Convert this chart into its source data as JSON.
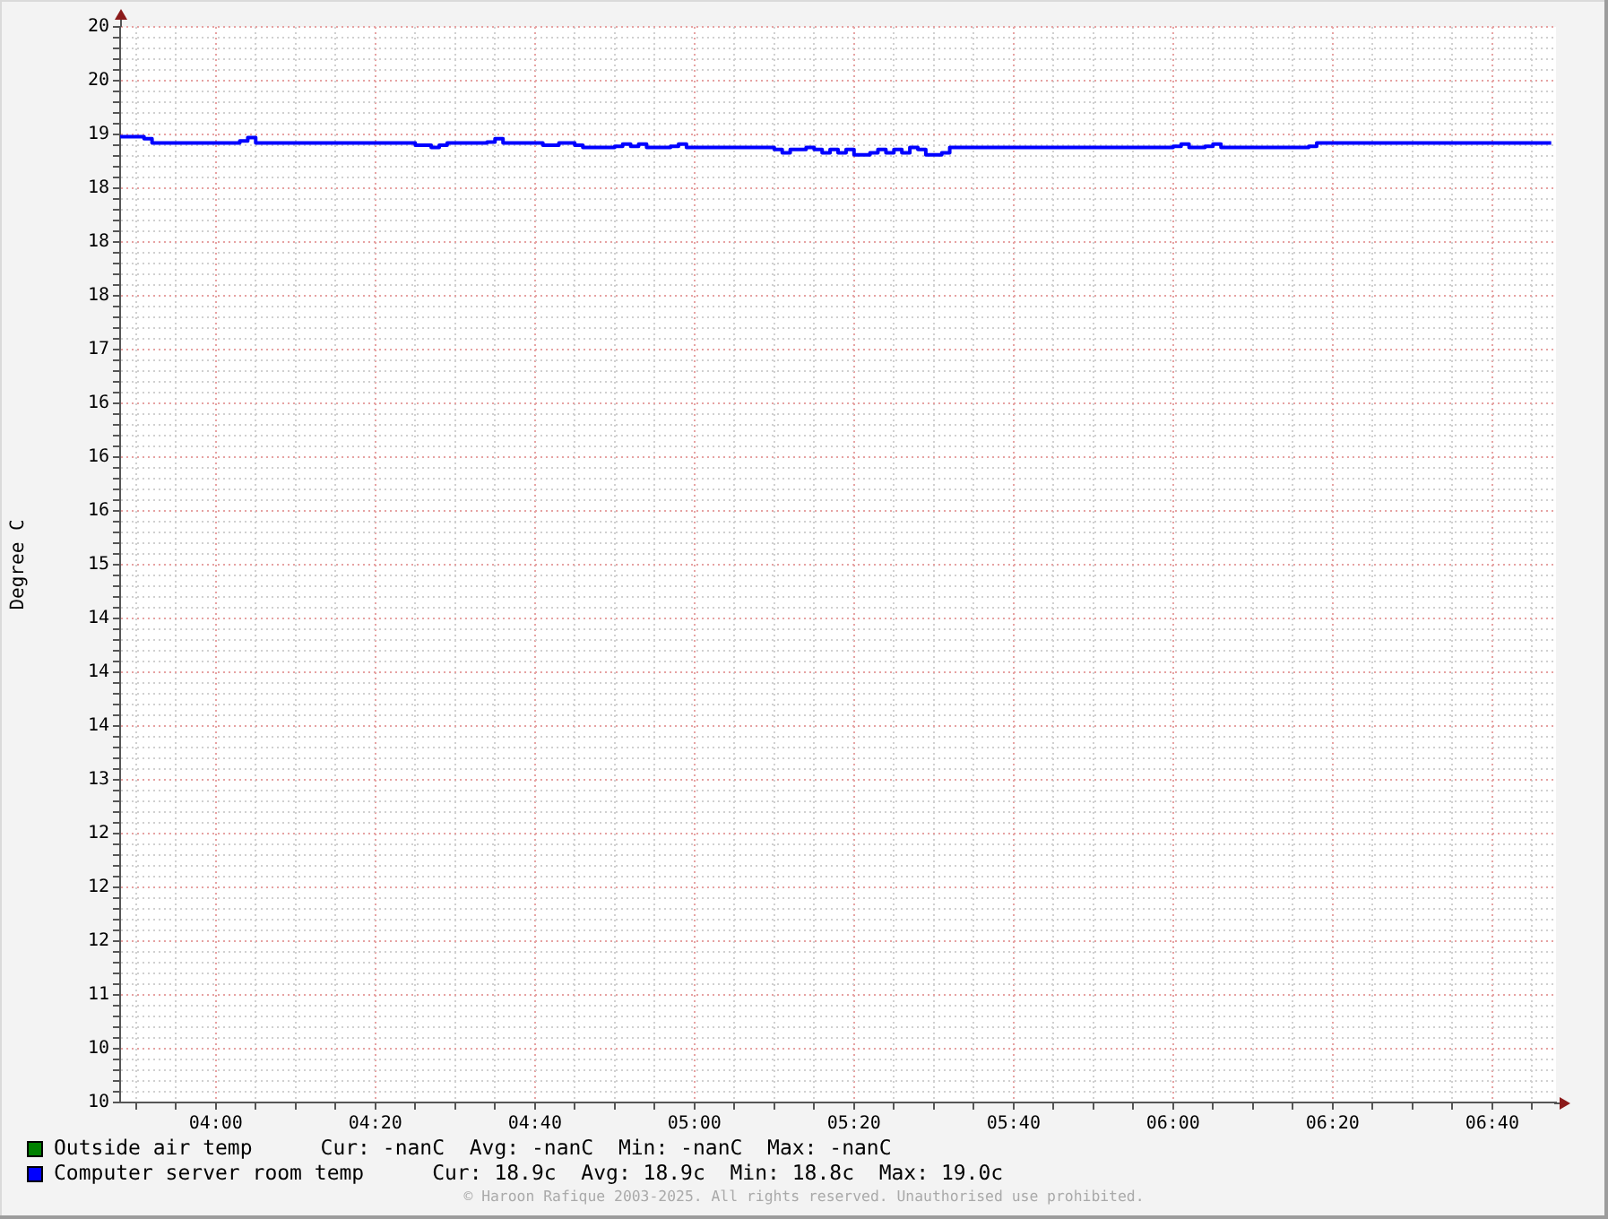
{
  "chart_data": {
    "type": "step",
    "ylabel": "Degree C",
    "xlim": [
      3.8,
      6.8
    ],
    "xticks": [
      {
        "value": 3.8333,
        "label": null
      },
      {
        "value": 3.9167,
        "label": null
      },
      {
        "value": 4,
        "label": "04:00"
      },
      {
        "value": 4.0833,
        "label": null
      },
      {
        "value": 4.1667,
        "label": null
      },
      {
        "value": 4.25,
        "label": null
      },
      {
        "value": 4.3333,
        "label": "04:20"
      },
      {
        "value": 4.4167,
        "label": null
      },
      {
        "value": 4.5,
        "label": null
      },
      {
        "value": 4.5833,
        "label": null
      },
      {
        "value": 4.6667,
        "label": "04:40"
      },
      {
        "value": 4.75,
        "label": null
      },
      {
        "value": 4.8333,
        "label": null
      },
      {
        "value": 4.9167,
        "label": null
      },
      {
        "value": 5,
        "label": "05:00"
      },
      {
        "value": 5.0833,
        "label": null
      },
      {
        "value": 5.1667,
        "label": null
      },
      {
        "value": 5.25,
        "label": null
      },
      {
        "value": 5.3333,
        "label": "05:20"
      },
      {
        "value": 5.4167,
        "label": null
      },
      {
        "value": 5.5,
        "label": null
      },
      {
        "value": 5.5833,
        "label": null
      },
      {
        "value": 5.6667,
        "label": "05:40"
      },
      {
        "value": 5.75,
        "label": null
      },
      {
        "value": 5.8333,
        "label": null
      },
      {
        "value": 5.9167,
        "label": null
      },
      {
        "value": 6,
        "label": "06:00"
      },
      {
        "value": 6.0833,
        "label": null
      },
      {
        "value": 6.1667,
        "label": null
      },
      {
        "value": 6.25,
        "label": null
      },
      {
        "value": 6.3333,
        "label": "06:20"
      },
      {
        "value": 6.4167,
        "label": null
      },
      {
        "value": 6.5,
        "label": null
      },
      {
        "value": 6.5833,
        "label": null
      },
      {
        "value": 6.6667,
        "label": "06:40"
      },
      {
        "value": 6.75,
        "label": null
      }
    ],
    "ylim": [
      10,
      20
    ],
    "yticks": [
      10,
      {
        "value": 10.1,
        "label": null
      },
      {
        "value": 10.2,
        "label": null
      },
      {
        "value": 10.3,
        "label": null
      },
      {
        "value": 10.4,
        "label": null
      },
      {
        "value": 10.5,
        "label": "10"
      },
      {
        "value": 10.6,
        "label": null
      },
      {
        "value": 10.7,
        "label": null
      },
      {
        "value": 10.8,
        "label": null
      },
      {
        "value": 10.9,
        "label": null
      },
      11,
      {
        "value": 11.1,
        "label": null
      },
      {
        "value": 11.2,
        "label": null
      },
      {
        "value": 11.3,
        "label": null
      },
      {
        "value": 11.4,
        "label": null
      },
      {
        "value": 11.5,
        "label": "12"
      },
      {
        "value": 11.6,
        "label": null
      },
      {
        "value": 11.7,
        "label": null
      },
      {
        "value": 11.8,
        "label": null
      },
      {
        "value": 11.9,
        "label": null
      },
      12,
      {
        "value": 12.1,
        "label": null
      },
      {
        "value": 12.2,
        "label": null
      },
      {
        "value": 12.3,
        "label": null
      },
      {
        "value": 12.4,
        "label": null
      },
      {
        "value": 12.5,
        "label": "12"
      },
      {
        "value": 12.6,
        "label": null
      },
      {
        "value": 12.7,
        "label": null
      },
      {
        "value": 12.8,
        "label": null
      },
      {
        "value": 12.9,
        "label": null
      },
      13,
      {
        "value": 13.1,
        "label": null
      },
      {
        "value": 13.2,
        "label": null
      },
      {
        "value": 13.3,
        "label": null
      },
      {
        "value": 13.4,
        "label": null
      },
      {
        "value": 13.5,
        "label": "14"
      },
      {
        "value": 13.6,
        "label": null
      },
      {
        "value": 13.7,
        "label": null
      },
      {
        "value": 13.8,
        "label": null
      },
      {
        "value": 13.9,
        "label": null
      },
      14,
      {
        "value": 14.1,
        "label": null
      },
      {
        "value": 14.2,
        "label": null
      },
      {
        "value": 14.3,
        "label": null
      },
      {
        "value": 14.4,
        "label": null
      },
      {
        "value": 14.5,
        "label": "14"
      },
      {
        "value": 14.6,
        "label": null
      },
      {
        "value": 14.7,
        "label": null
      },
      {
        "value": 14.8,
        "label": null
      },
      {
        "value": 14.9,
        "label": null
      },
      15,
      {
        "value": 15.1,
        "label": null
      },
      {
        "value": 15.2,
        "label": null
      },
      {
        "value": 15.3,
        "label": null
      },
      {
        "value": 15.4,
        "label": null
      },
      {
        "value": 15.5,
        "label": "16"
      },
      {
        "value": 15.6,
        "label": null
      },
      {
        "value": 15.7,
        "label": null
      },
      {
        "value": 15.8,
        "label": null
      },
      {
        "value": 15.9,
        "label": null
      },
      16,
      {
        "value": 16.1,
        "label": null
      },
      {
        "value": 16.2,
        "label": null
      },
      {
        "value": 16.3,
        "label": null
      },
      {
        "value": 16.4,
        "label": null
      },
      {
        "value": 16.5,
        "label": "16"
      },
      {
        "value": 16.6,
        "label": null
      },
      {
        "value": 16.7,
        "label": null
      },
      {
        "value": 16.8,
        "label": null
      },
      {
        "value": 16.9,
        "label": null
      },
      17,
      {
        "value": 17.1,
        "label": null
      },
      {
        "value": 17.2,
        "label": null
      },
      {
        "value": 17.3,
        "label": null
      },
      {
        "value": 17.4,
        "label": null
      },
      {
        "value": 17.5,
        "label": "18"
      },
      {
        "value": 17.6,
        "label": null
      },
      {
        "value": 17.7,
        "label": null
      },
      {
        "value": 17.8,
        "label": null
      },
      {
        "value": 17.9,
        "label": null
      },
      18,
      {
        "value": 18.1,
        "label": null
      },
      {
        "value": 18.2,
        "label": null
      },
      {
        "value": 18.3,
        "label": null
      },
      {
        "value": 18.4,
        "label": null
      },
      {
        "value": 18.5,
        "label": "18"
      },
      {
        "value": 18.6,
        "label": null
      },
      {
        "value": 18.7,
        "label": null
      },
      {
        "value": 18.8,
        "label": null
      },
      {
        "value": 18.9,
        "label": null
      },
      19,
      {
        "value": 19.1,
        "label": null
      },
      {
        "value": 19.2,
        "label": null
      },
      {
        "value": 19.3,
        "label": null
      },
      {
        "value": 19.4,
        "label": null
      },
      {
        "value": 19.5,
        "label": "20"
      },
      {
        "value": 19.6,
        "label": null
      },
      {
        "value": 19.7,
        "label": null
      },
      {
        "value": 19.8,
        "label": null
      },
      {
        "value": 19.9,
        "label": null
      },
      20
    ],
    "grid": true,
    "legend": "bottom left",
    "series": [
      {
        "name": "Outside air temp",
        "color": "#008000"
      },
      {
        "name": "Computer server room temp",
        "color": "#0000ff",
        "x": [
          3.8,
          3.85,
          3.8667,
          4.05,
          4.0667,
          4.0833,
          4.4167,
          4.45,
          4.4667,
          4.4833,
          4.5667,
          4.5833,
          4.6,
          4.6833,
          4.7167,
          4.75,
          4.7667,
          4.8333,
          4.85,
          4.8667,
          4.8833,
          4.9,
          4.95,
          4.9667,
          4.9833,
          5.1667,
          5.1833,
          5.2,
          5.2333,
          5.25,
          5.2667,
          5.2833,
          5.3,
          5.3167,
          5.3333,
          5.3667,
          5.3833,
          5.4,
          5.4167,
          5.4333,
          5.45,
          5.4667,
          5.4833,
          5.5167,
          5.5333,
          6.0,
          6.0167,
          6.0333,
          6.0667,
          6.0833,
          6.1,
          6.2833,
          6.3,
          6.79
        ],
        "values": [
          18.98,
          18.96,
          18.92,
          18.94,
          18.97,
          18.92,
          18.9,
          18.88,
          18.9,
          18.92,
          18.93,
          18.96,
          18.92,
          18.9,
          18.92,
          18.9,
          18.88,
          18.89,
          18.91,
          18.89,
          18.91,
          18.88,
          18.89,
          18.91,
          18.88,
          18.86,
          18.83,
          18.86,
          18.88,
          18.86,
          18.83,
          18.86,
          18.83,
          18.86,
          18.81,
          18.83,
          18.86,
          18.83,
          18.86,
          18.83,
          18.88,
          18.86,
          18.81,
          18.83,
          18.88,
          18.89,
          18.91,
          18.88,
          18.89,
          18.91,
          18.88,
          18.89,
          18.92,
          18.92
        ]
      }
    ],
    "annotations": [
      "Cur: -nanC  Avg: -nanC  Min: -nanC  Max: -nanC",
      "Cur: 18.9c  Avg: 18.9c  Min: 18.8c  Max: 19.0c",
      "© Haroon Rafique 2003-2025. All rights reserved. Unauthorised use prohibited."
    ]
  }
}
